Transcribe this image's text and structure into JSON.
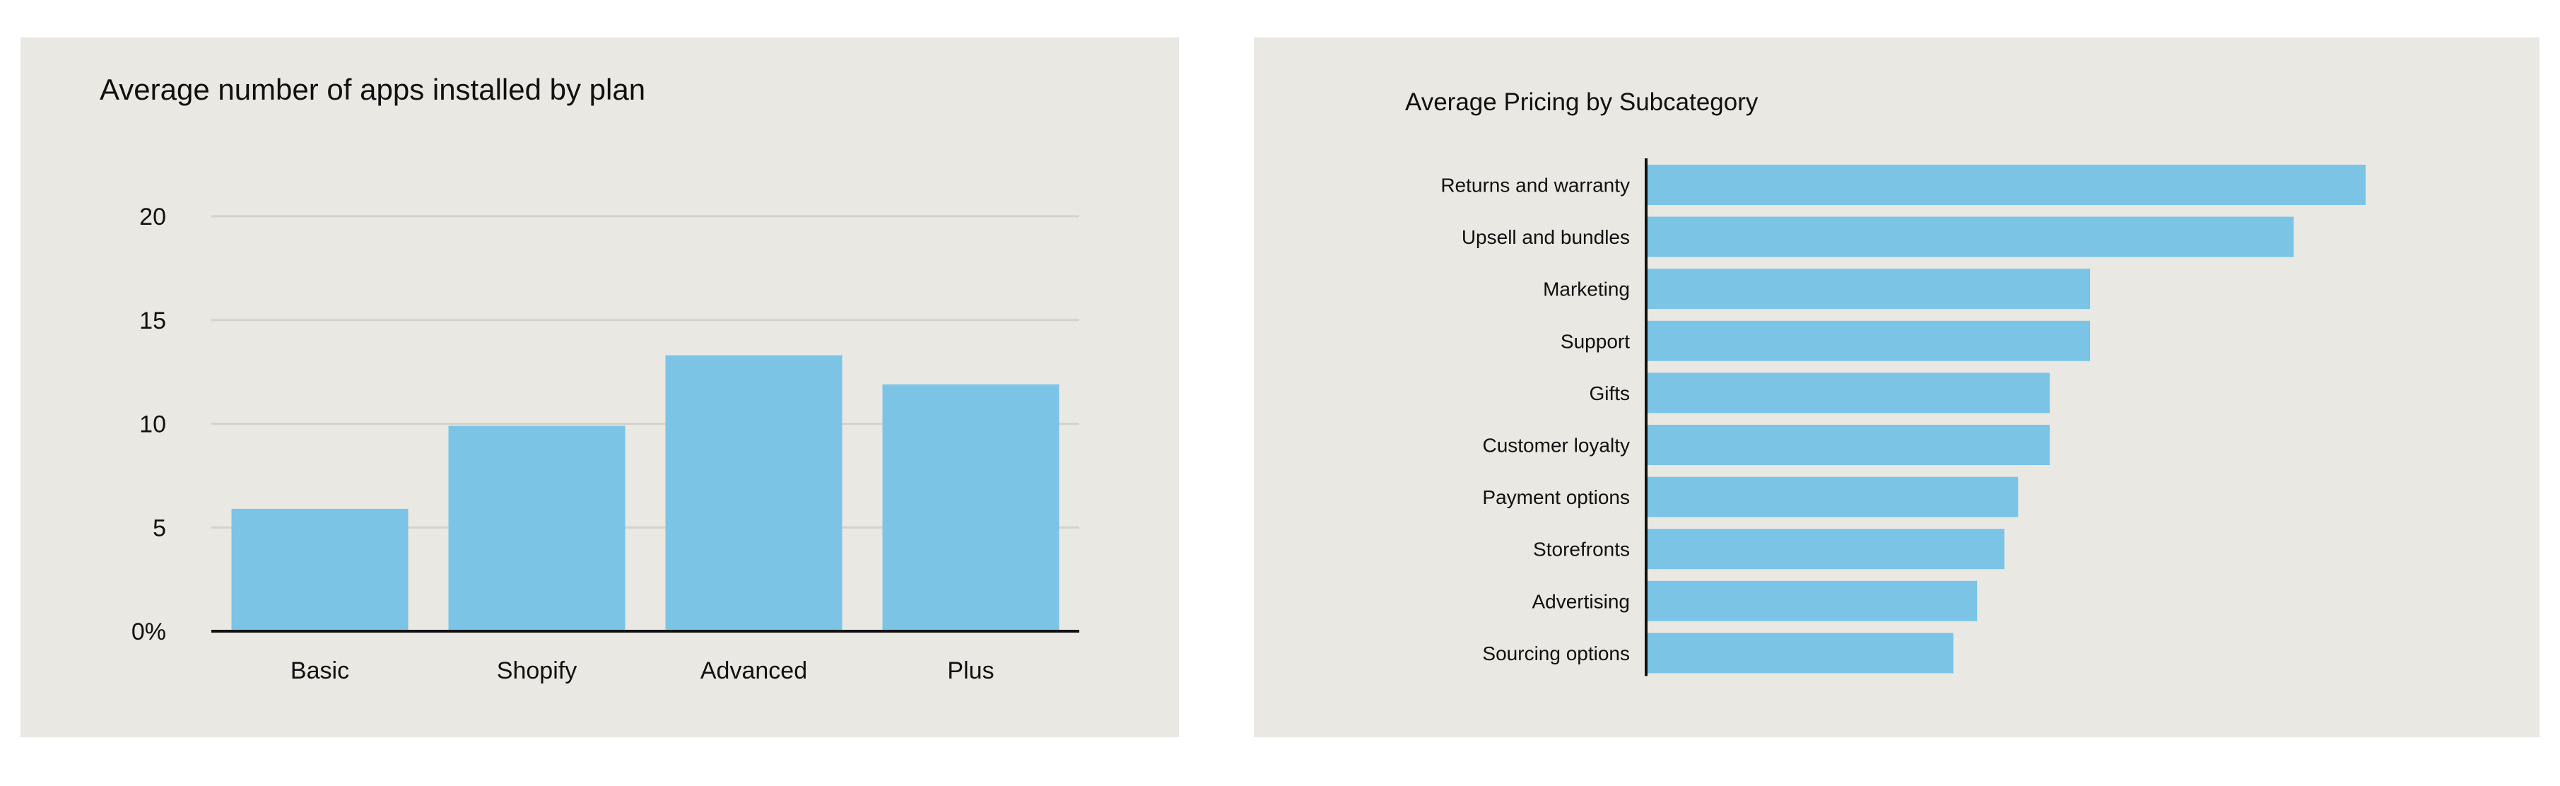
{
  "chart_data": [
    {
      "type": "bar",
      "title": "Average number of apps installed by plan",
      "categories": [
        "Basic",
        "Shopify",
        "Advanced",
        "Plus"
      ],
      "values": [
        5.9,
        9.9,
        13.3,
        11.9
      ],
      "ylim": [
        0,
        20
      ],
      "yticks": [
        0,
        5,
        10,
        15,
        20
      ],
      "ytick_labels": [
        "0%",
        "5",
        "10",
        "15",
        "20"
      ],
      "xlabel": "",
      "ylabel": "",
      "grid": true,
      "colors": {
        "bar": "#7bc4e6",
        "grid": "#d3d2cc",
        "axis": "#111111",
        "background": "#e9e8e2"
      }
    },
    {
      "type": "bar",
      "orientation": "horizontal",
      "title": "Average Pricing by Subcategory",
      "categories": [
        "Returns and warranty",
        "Upsell and bundles",
        "Marketing",
        "Support",
        "Gifts",
        "Customer loyalty",
        "Payment options",
        "Storefronts",
        "Advertising",
        "Sourcing options"
      ],
      "values": [
        100,
        90,
        61.7,
        61.7,
        56.1,
        56.1,
        51.7,
        49.8,
        46,
        42.7
      ],
      "xlim": [
        0,
        100
      ],
      "xlabel": "",
      "ylabel": "",
      "grid": false,
      "colors": {
        "bar": "#7bc4e6",
        "axis": "#111111",
        "background": "#e9e8e2"
      }
    }
  ]
}
